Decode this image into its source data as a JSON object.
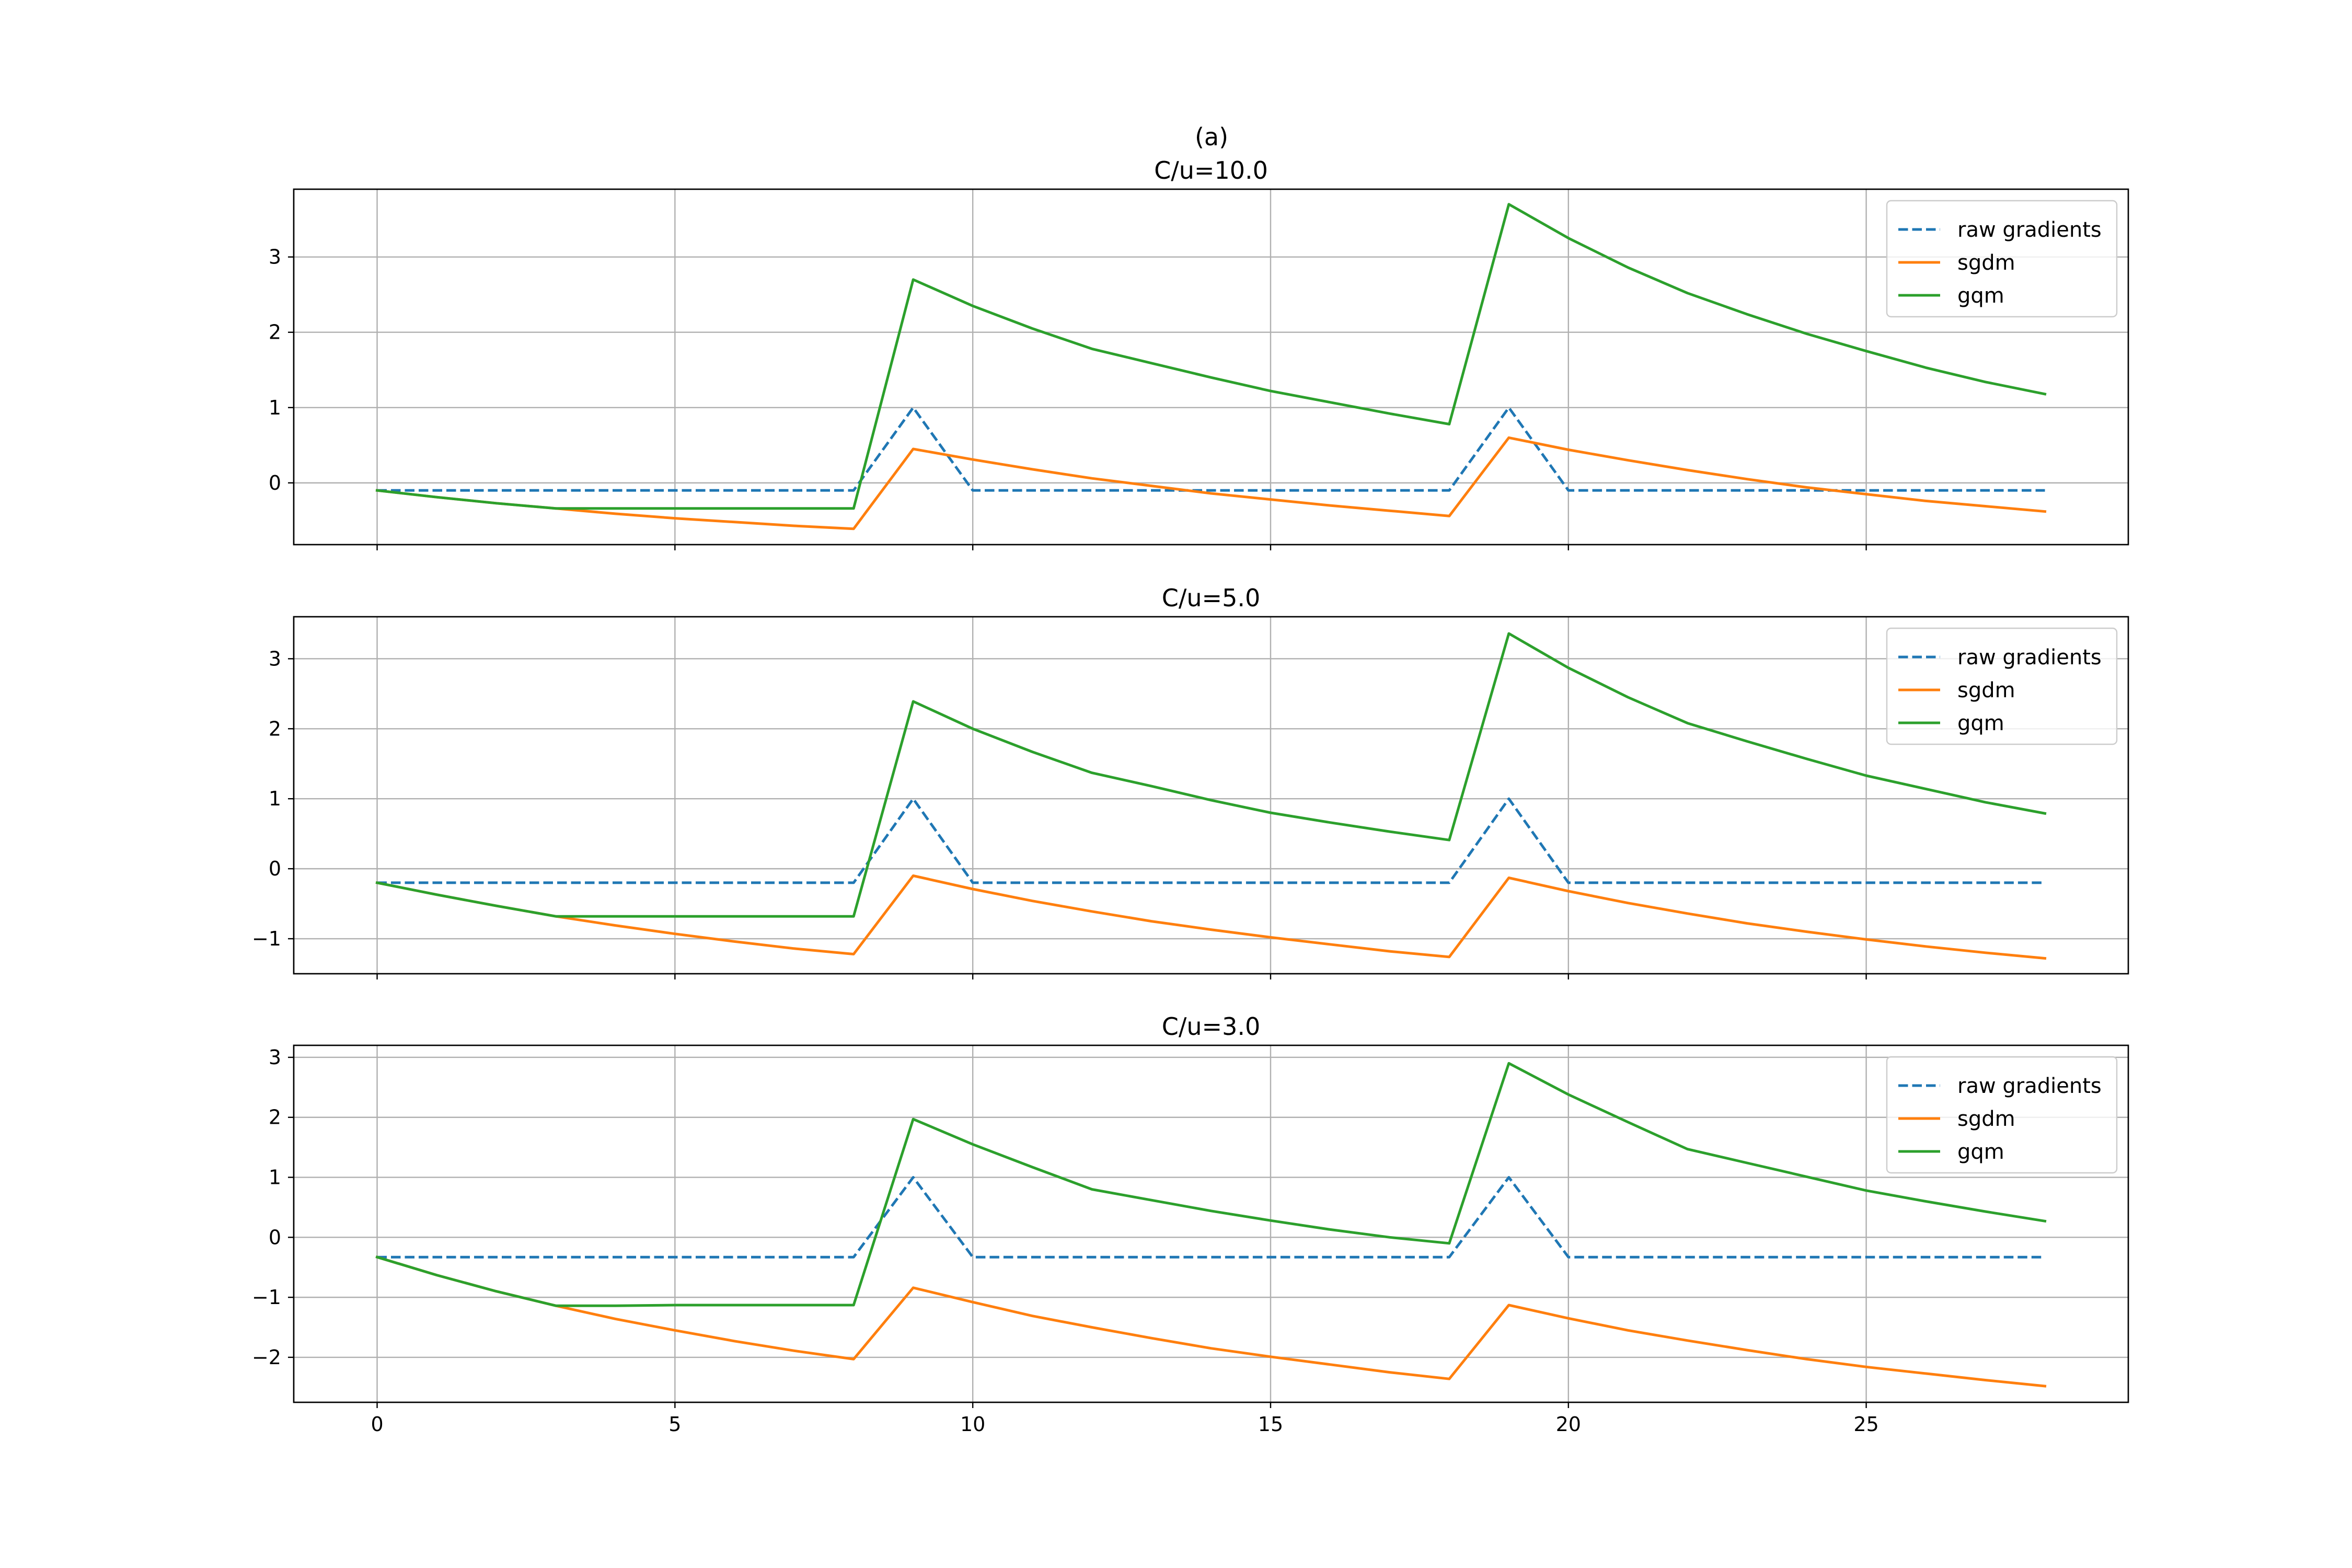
{
  "figure": {
    "suptitle": "(a)"
  },
  "chart_data": [
    {
      "type": "line",
      "title": "C/u=10.0",
      "xlabel": "",
      "ylabel": "",
      "xlim": [
        -1.4,
        29.4
      ],
      "ylim": [
        -0.82,
        3.9
      ],
      "xticks": [
        0,
        5,
        10,
        15,
        20,
        25
      ],
      "xticklabels": [],
      "yticks": [
        0,
        1,
        2,
        3
      ],
      "yticklabels": [
        "0",
        "1",
        "2",
        "3"
      ],
      "grid": true,
      "legend_position": "upper right",
      "x": [
        0,
        1,
        2,
        3,
        4,
        5,
        6,
        7,
        8,
        9,
        10,
        11,
        12,
        13,
        14,
        15,
        16,
        17,
        18,
        19,
        20,
        21,
        22,
        23,
        24,
        25,
        26,
        27,
        28
      ],
      "series": [
        {
          "name": "raw gradients",
          "color": "#1f77b4",
          "dashed": true,
          "values": [
            -0.1,
            -0.1,
            -0.1,
            -0.1,
            -0.1,
            -0.1,
            -0.1,
            -0.1,
            -0.1,
            1.0,
            -0.1,
            -0.1,
            -0.1,
            -0.1,
            -0.1,
            -0.1,
            -0.1,
            -0.1,
            -0.1,
            1.0,
            -0.1,
            -0.1,
            -0.1,
            -0.1,
            -0.1,
            -0.1,
            -0.1,
            -0.1,
            -0.1
          ]
        },
        {
          "name": "sgdm",
          "color": "#ff7f0e",
          "dashed": false,
          "values": [
            -0.1,
            -0.19,
            -0.27,
            -0.34,
            -0.41,
            -0.47,
            -0.52,
            -0.57,
            -0.61,
            0.45,
            0.31,
            0.18,
            0.06,
            -0.04,
            -0.14,
            -0.22,
            -0.3,
            -0.37,
            -0.44,
            0.6,
            0.44,
            0.3,
            0.17,
            0.05,
            -0.06,
            -0.15,
            -0.24,
            -0.31,
            -0.38
          ]
        },
        {
          "name": "gqm",
          "color": "#2ca02c",
          "dashed": false,
          "values": [
            -0.1,
            -0.19,
            -0.27,
            -0.34,
            -0.34,
            -0.34,
            -0.34,
            -0.34,
            -0.34,
            2.7,
            2.35,
            2.05,
            1.78,
            1.59,
            1.4,
            1.22,
            1.07,
            0.92,
            0.78,
            3.7,
            3.25,
            2.86,
            2.52,
            2.24,
            1.98,
            1.75,
            1.53,
            1.34,
            1.18
          ]
        }
      ]
    },
    {
      "type": "line",
      "title": "C/u=5.0",
      "xlabel": "",
      "ylabel": "",
      "xlim": [
        -1.4,
        29.4
      ],
      "ylim": [
        -1.5,
        3.6
      ],
      "xticks": [
        0,
        5,
        10,
        15,
        20,
        25
      ],
      "xticklabels": [],
      "yticks": [
        -1,
        0,
        1,
        2,
        3
      ],
      "yticklabels": [
        "−1",
        "0",
        "1",
        "2",
        "3"
      ],
      "grid": true,
      "legend_position": "upper right",
      "x": [
        0,
        1,
        2,
        3,
        4,
        5,
        6,
        7,
        8,
        9,
        10,
        11,
        12,
        13,
        14,
        15,
        16,
        17,
        18,
        19,
        20,
        21,
        22,
        23,
        24,
        25,
        26,
        27,
        28
      ],
      "series": [
        {
          "name": "raw gradients",
          "color": "#1f77b4",
          "dashed": true,
          "values": [
            -0.2,
            -0.2,
            -0.2,
            -0.2,
            -0.2,
            -0.2,
            -0.2,
            -0.2,
            -0.2,
            1.0,
            -0.2,
            -0.2,
            -0.2,
            -0.2,
            -0.2,
            -0.2,
            -0.2,
            -0.2,
            -0.2,
            1.0,
            -0.2,
            -0.2,
            -0.2,
            -0.2,
            -0.2,
            -0.2,
            -0.2,
            -0.2,
            -0.2
          ]
        },
        {
          "name": "sgdm",
          "color": "#ff7f0e",
          "dashed": false,
          "values": [
            -0.2,
            -0.37,
            -0.53,
            -0.68,
            -0.81,
            -0.93,
            -1.04,
            -1.14,
            -1.22,
            -0.1,
            -0.29,
            -0.46,
            -0.61,
            -0.75,
            -0.87,
            -0.98,
            -1.08,
            -1.18,
            -1.26,
            -0.13,
            -0.32,
            -0.49,
            -0.64,
            -0.78,
            -0.9,
            -1.01,
            -1.11,
            -1.2,
            -1.28
          ]
        },
        {
          "name": "gqm",
          "color": "#2ca02c",
          "dashed": false,
          "values": [
            -0.2,
            -0.37,
            -0.53,
            -0.68,
            -0.68,
            -0.68,
            -0.68,
            -0.68,
            -0.68,
            2.39,
            2.0,
            1.67,
            1.37,
            1.18,
            0.98,
            0.8,
            0.66,
            0.53,
            0.41,
            3.36,
            2.87,
            2.45,
            2.08,
            1.82,
            1.57,
            1.33,
            1.14,
            0.95,
            0.79
          ]
        }
      ]
    },
    {
      "type": "line",
      "title": "C/u=3.0",
      "xlabel": "",
      "ylabel": "",
      "xlim": [
        -1.4,
        29.4
      ],
      "ylim": [
        -2.75,
        3.2
      ],
      "xticks": [
        0,
        5,
        10,
        15,
        20,
        25
      ],
      "xticklabels": [
        "0",
        "5",
        "10",
        "15",
        "20",
        "25"
      ],
      "yticks": [
        -2,
        -1,
        0,
        1,
        2,
        3
      ],
      "yticklabels": [
        "−2",
        "−1",
        "0",
        "1",
        "2",
        "3"
      ],
      "grid": true,
      "legend_position": "upper right",
      "x": [
        0,
        1,
        2,
        3,
        4,
        5,
        6,
        7,
        8,
        9,
        10,
        11,
        12,
        13,
        14,
        15,
        16,
        17,
        18,
        19,
        20,
        21,
        22,
        23,
        24,
        25,
        26,
        27,
        28
      ],
      "series": [
        {
          "name": "raw gradients",
          "color": "#1f77b4",
          "dashed": true,
          "values": [
            -0.33,
            -0.33,
            -0.33,
            -0.33,
            -0.33,
            -0.33,
            -0.33,
            -0.33,
            -0.33,
            1.0,
            -0.33,
            -0.33,
            -0.33,
            -0.33,
            -0.33,
            -0.33,
            -0.33,
            -0.33,
            -0.33,
            1.0,
            -0.33,
            -0.33,
            -0.33,
            -0.33,
            -0.33,
            -0.33,
            -0.33,
            -0.33,
            -0.33
          ]
        },
        {
          "name": "sgdm",
          "color": "#ff7f0e",
          "dashed": false,
          "values": [
            -0.33,
            -0.63,
            -0.9,
            -1.14,
            -1.36,
            -1.55,
            -1.73,
            -1.89,
            -2.03,
            -0.84,
            -1.08,
            -1.31,
            -1.5,
            -1.68,
            -1.85,
            -1.99,
            -2.12,
            -2.25,
            -2.36,
            -1.13,
            -1.35,
            -1.55,
            -1.72,
            -1.88,
            -2.03,
            -2.16,
            -2.27,
            -2.38,
            -2.48
          ]
        },
        {
          "name": "gqm",
          "color": "#2ca02c",
          "dashed": false,
          "values": [
            -0.33,
            -0.63,
            -0.9,
            -1.14,
            -1.14,
            -1.13,
            -1.13,
            -1.13,
            -1.13,
            1.97,
            1.55,
            1.17,
            0.8,
            0.62,
            0.44,
            0.28,
            0.13,
            0.0,
            -0.1,
            2.9,
            2.38,
            1.92,
            1.47,
            1.24,
            1.01,
            0.78,
            0.6,
            0.43,
            0.27
          ]
        }
      ]
    }
  ]
}
